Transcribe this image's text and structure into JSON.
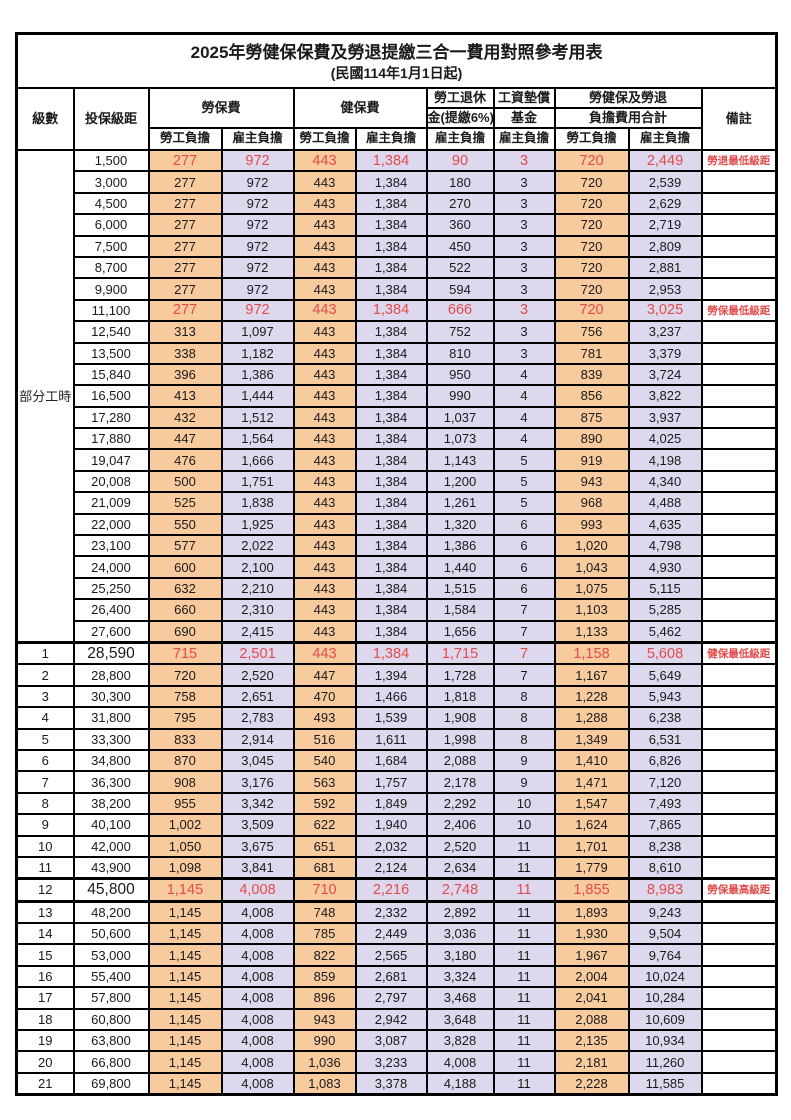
{
  "title": "2025年勞健保保費及勞退提繳三合一費用對照參考用表",
  "subtitle": "(民國114年1月1日起)",
  "header": {
    "level": "級數",
    "bracket": "投保級距",
    "labor_insurance": "勞保費",
    "health_insurance": "健保費",
    "pension_line1": "勞工退休",
    "pension_line2": "金(提繳6%)",
    "wage_fund_line1": "工資墊償",
    "wage_fund_line2": "基金",
    "total_line1": "勞健保及勞退",
    "total_line2": "負擔費用合計",
    "remark": "備註",
    "worker": "勞工負擔",
    "employer": "雇主負擔"
  },
  "part_time": {
    "label": "部分工時",
    "rowspan": 23
  },
  "colors": {
    "worker_bg": "#F8CB9E",
    "employer_bg": "#DED8EE",
    "highlight_text": "#E14B4B",
    "grid": "#000000"
  },
  "rows": [
    {
      "level": "",
      "bracket": "1,500",
      "liw": "277",
      "lie": "972",
      "hiw": "443",
      "hie": "1,384",
      "pen": "90",
      "fund": "3",
      "totw": "720",
      "tote": "2,449",
      "remark": "勞退最低級距",
      "red": true
    },
    {
      "level": "",
      "bracket": "3,000",
      "liw": "277",
      "lie": "972",
      "hiw": "443",
      "hie": "1,384",
      "pen": "180",
      "fund": "3",
      "totw": "720",
      "tote": "2,539",
      "remark": ""
    },
    {
      "level": "",
      "bracket": "4,500",
      "liw": "277",
      "lie": "972",
      "hiw": "443",
      "hie": "1,384",
      "pen": "270",
      "fund": "3",
      "totw": "720",
      "tote": "2,629",
      "remark": ""
    },
    {
      "level": "",
      "bracket": "6,000",
      "liw": "277",
      "lie": "972",
      "hiw": "443",
      "hie": "1,384",
      "pen": "360",
      "fund": "3",
      "totw": "720",
      "tote": "2,719",
      "remark": ""
    },
    {
      "level": "",
      "bracket": "7,500",
      "liw": "277",
      "lie": "972",
      "hiw": "443",
      "hie": "1,384",
      "pen": "450",
      "fund": "3",
      "totw": "720",
      "tote": "2,809",
      "remark": ""
    },
    {
      "level": "",
      "bracket": "8,700",
      "liw": "277",
      "lie": "972",
      "hiw": "443",
      "hie": "1,384",
      "pen": "522",
      "fund": "3",
      "totw": "720",
      "tote": "2,881",
      "remark": ""
    },
    {
      "level": "",
      "bracket": "9,900",
      "liw": "277",
      "lie": "972",
      "hiw": "443",
      "hie": "1,384",
      "pen": "594",
      "fund": "3",
      "totw": "720",
      "tote": "2,953",
      "remark": ""
    },
    {
      "level": "",
      "bracket": "11,100",
      "liw": "277",
      "lie": "972",
      "hiw": "443",
      "hie": "1,384",
      "pen": "666",
      "fund": "3",
      "totw": "720",
      "tote": "3,025",
      "remark": "勞保最低級距",
      "red": true
    },
    {
      "level": "",
      "bracket": "12,540",
      "liw": "313",
      "lie": "1,097",
      "hiw": "443",
      "hie": "1,384",
      "pen": "752",
      "fund": "3",
      "totw": "756",
      "tote": "3,237",
      "remark": ""
    },
    {
      "level": "",
      "bracket": "13,500",
      "liw": "338",
      "lie": "1,182",
      "hiw": "443",
      "hie": "1,384",
      "pen": "810",
      "fund": "3",
      "totw": "781",
      "tote": "3,379",
      "remark": ""
    },
    {
      "level": "",
      "bracket": "15,840",
      "liw": "396",
      "lie": "1,386",
      "hiw": "443",
      "hie": "1,384",
      "pen": "950",
      "fund": "4",
      "totw": "839",
      "tote": "3,724",
      "remark": ""
    },
    {
      "level": "",
      "bracket": "16,500",
      "liw": "413",
      "lie": "1,444",
      "hiw": "443",
      "hie": "1,384",
      "pen": "990",
      "fund": "4",
      "totw": "856",
      "tote": "3,822",
      "remark": ""
    },
    {
      "level": "",
      "bracket": "17,280",
      "liw": "432",
      "lie": "1,512",
      "hiw": "443",
      "hie": "1,384",
      "pen": "1,037",
      "fund": "4",
      "totw": "875",
      "tote": "3,937",
      "remark": ""
    },
    {
      "level": "",
      "bracket": "17,880",
      "liw": "447",
      "lie": "1,564",
      "hiw": "443",
      "hie": "1,384",
      "pen": "1,073",
      "fund": "4",
      "totw": "890",
      "tote": "4,025",
      "remark": ""
    },
    {
      "level": "",
      "bracket": "19,047",
      "liw": "476",
      "lie": "1,666",
      "hiw": "443",
      "hie": "1,384",
      "pen": "1,143",
      "fund": "5",
      "totw": "919",
      "tote": "4,198",
      "remark": ""
    },
    {
      "level": "",
      "bracket": "20,008",
      "liw": "500",
      "lie": "1,751",
      "hiw": "443",
      "hie": "1,384",
      "pen": "1,200",
      "fund": "5",
      "totw": "943",
      "tote": "4,340",
      "remark": ""
    },
    {
      "level": "",
      "bracket": "21,009",
      "liw": "525",
      "lie": "1,838",
      "hiw": "443",
      "hie": "1,384",
      "pen": "1,261",
      "fund": "5",
      "totw": "968",
      "tote": "4,488",
      "remark": ""
    },
    {
      "level": "",
      "bracket": "22,000",
      "liw": "550",
      "lie": "1,925",
      "hiw": "443",
      "hie": "1,384",
      "pen": "1,320",
      "fund": "6",
      "totw": "993",
      "tote": "4,635",
      "remark": ""
    },
    {
      "level": "",
      "bracket": "23,100",
      "liw": "577",
      "lie": "2,022",
      "hiw": "443",
      "hie": "1,384",
      "pen": "1,386",
      "fund": "6",
      "totw": "1,020",
      "tote": "4,798",
      "remark": ""
    },
    {
      "level": "",
      "bracket": "24,000",
      "liw": "600",
      "lie": "2,100",
      "hiw": "443",
      "hie": "1,384",
      "pen": "1,440",
      "fund": "6",
      "totw": "1,043",
      "tote": "4,930",
      "remark": ""
    },
    {
      "level": "",
      "bracket": "25,250",
      "liw": "632",
      "lie": "2,210",
      "hiw": "443",
      "hie": "1,384",
      "pen": "1,515",
      "fund": "6",
      "totw": "1,075",
      "tote": "5,115",
      "remark": ""
    },
    {
      "level": "",
      "bracket": "26,400",
      "liw": "660",
      "lie": "2,310",
      "hiw": "443",
      "hie": "1,384",
      "pen": "1,584",
      "fund": "7",
      "totw": "1,103",
      "tote": "5,285",
      "remark": ""
    },
    {
      "level": "",
      "bracket": "27,600",
      "liw": "690",
      "lie": "2,415",
      "hiw": "443",
      "hie": "1,384",
      "pen": "1,656",
      "fund": "7",
      "totw": "1,133",
      "tote": "5,462",
      "remark": ""
    },
    {
      "level": "1",
      "bracket": "28,590",
      "liw": "715",
      "lie": "2,501",
      "hiw": "443",
      "hie": "1,384",
      "pen": "1,715",
      "fund": "7",
      "totw": "1,158",
      "tote": "5,608",
      "remark": "健保最低級距",
      "red": true,
      "big": true,
      "thick_top": true
    },
    {
      "level": "2",
      "bracket": "28,800",
      "liw": "720",
      "lie": "2,520",
      "hiw": "447",
      "hie": "1,394",
      "pen": "1,728",
      "fund": "7",
      "totw": "1,167",
      "tote": "5,649",
      "remark": ""
    },
    {
      "level": "3",
      "bracket": "30,300",
      "liw": "758",
      "lie": "2,651",
      "hiw": "470",
      "hie": "1,466",
      "pen": "1,818",
      "fund": "8",
      "totw": "1,228",
      "tote": "5,943",
      "remark": ""
    },
    {
      "level": "4",
      "bracket": "31,800",
      "liw": "795",
      "lie": "2,783",
      "hiw": "493",
      "hie": "1,539",
      "pen": "1,908",
      "fund": "8",
      "totw": "1,288",
      "tote": "6,238",
      "remark": ""
    },
    {
      "level": "5",
      "bracket": "33,300",
      "liw": "833",
      "lie": "2,914",
      "hiw": "516",
      "hie": "1,611",
      "pen": "1,998",
      "fund": "8",
      "totw": "1,349",
      "tote": "6,531",
      "remark": ""
    },
    {
      "level": "6",
      "bracket": "34,800",
      "liw": "870",
      "lie": "3,045",
      "hiw": "540",
      "hie": "1,684",
      "pen": "2,088",
      "fund": "9",
      "totw": "1,410",
      "tote": "6,826",
      "remark": ""
    },
    {
      "level": "7",
      "bracket": "36,300",
      "liw": "908",
      "lie": "3,176",
      "hiw": "563",
      "hie": "1,757",
      "pen": "2,178",
      "fund": "9",
      "totw": "1,471",
      "tote": "7,120",
      "remark": ""
    },
    {
      "level": "8",
      "bracket": "38,200",
      "liw": "955",
      "lie": "3,342",
      "hiw": "592",
      "hie": "1,849",
      "pen": "2,292",
      "fund": "10",
      "totw": "1,547",
      "tote": "7,493",
      "remark": ""
    },
    {
      "level": "9",
      "bracket": "40,100",
      "liw": "1,002",
      "lie": "3,509",
      "hiw": "622",
      "hie": "1,940",
      "pen": "2,406",
      "fund": "10",
      "totw": "1,624",
      "tote": "7,865",
      "remark": ""
    },
    {
      "level": "10",
      "bracket": "42,000",
      "liw": "1,050",
      "lie": "3,675",
      "hiw": "651",
      "hie": "2,032",
      "pen": "2,520",
      "fund": "11",
      "totw": "1,701",
      "tote": "8,238",
      "remark": ""
    },
    {
      "level": "11",
      "bracket": "43,900",
      "liw": "1,098",
      "lie": "3,841",
      "hiw": "681",
      "hie": "2,124",
      "pen": "2,634",
      "fund": "11",
      "totw": "1,779",
      "tote": "8,610",
      "remark": ""
    },
    {
      "level": "12",
      "bracket": "45,800",
      "liw": "1,145",
      "lie": "4,008",
      "hiw": "710",
      "hie": "2,216",
      "pen": "2,748",
      "fund": "11",
      "totw": "1,855",
      "tote": "8,983",
      "remark": "勞保最高級距",
      "red": true,
      "big": true,
      "thick_top": true,
      "thick_bottom": true
    },
    {
      "level": "13",
      "bracket": "48,200",
      "liw": "1,145",
      "lie": "4,008",
      "hiw": "748",
      "hie": "2,332",
      "pen": "2,892",
      "fund": "11",
      "totw": "1,893",
      "tote": "9,243",
      "remark": ""
    },
    {
      "level": "14",
      "bracket": "50,600",
      "liw": "1,145",
      "lie": "4,008",
      "hiw": "785",
      "hie": "2,449",
      "pen": "3,036",
      "fund": "11",
      "totw": "1,930",
      "tote": "9,504",
      "remark": ""
    },
    {
      "level": "15",
      "bracket": "53,000",
      "liw": "1,145",
      "lie": "4,008",
      "hiw": "822",
      "hie": "2,565",
      "pen": "3,180",
      "fund": "11",
      "totw": "1,967",
      "tote": "9,764",
      "remark": ""
    },
    {
      "level": "16",
      "bracket": "55,400",
      "liw": "1,145",
      "lie": "4,008",
      "hiw": "859",
      "hie": "2,681",
      "pen": "3,324",
      "fund": "11",
      "totw": "2,004",
      "tote": "10,024",
      "remark": ""
    },
    {
      "level": "17",
      "bracket": "57,800",
      "liw": "1,145",
      "lie": "4,008",
      "hiw": "896",
      "hie": "2,797",
      "pen": "3,468",
      "fund": "11",
      "totw": "2,041",
      "tote": "10,284",
      "remark": ""
    },
    {
      "level": "18",
      "bracket": "60,800",
      "liw": "1,145",
      "lie": "4,008",
      "hiw": "943",
      "hie": "2,942",
      "pen": "3,648",
      "fund": "11",
      "totw": "2,088",
      "tote": "10,609",
      "remark": ""
    },
    {
      "level": "19",
      "bracket": "63,800",
      "liw": "1,145",
      "lie": "4,008",
      "hiw": "990",
      "hie": "3,087",
      "pen": "3,828",
      "fund": "11",
      "totw": "2,135",
      "tote": "10,934",
      "remark": ""
    },
    {
      "level": "20",
      "bracket": "66,800",
      "liw": "1,145",
      "lie": "4,008",
      "hiw": "1,036",
      "hie": "3,233",
      "pen": "4,008",
      "fund": "11",
      "totw": "2,181",
      "tote": "11,260",
      "remark": ""
    },
    {
      "level": "21",
      "bracket": "69,800",
      "liw": "1,145",
      "lie": "4,008",
      "hiw": "1,083",
      "hie": "3,378",
      "pen": "4,188",
      "fund": "11",
      "totw": "2,228",
      "tote": "11,585",
      "remark": ""
    }
  ]
}
